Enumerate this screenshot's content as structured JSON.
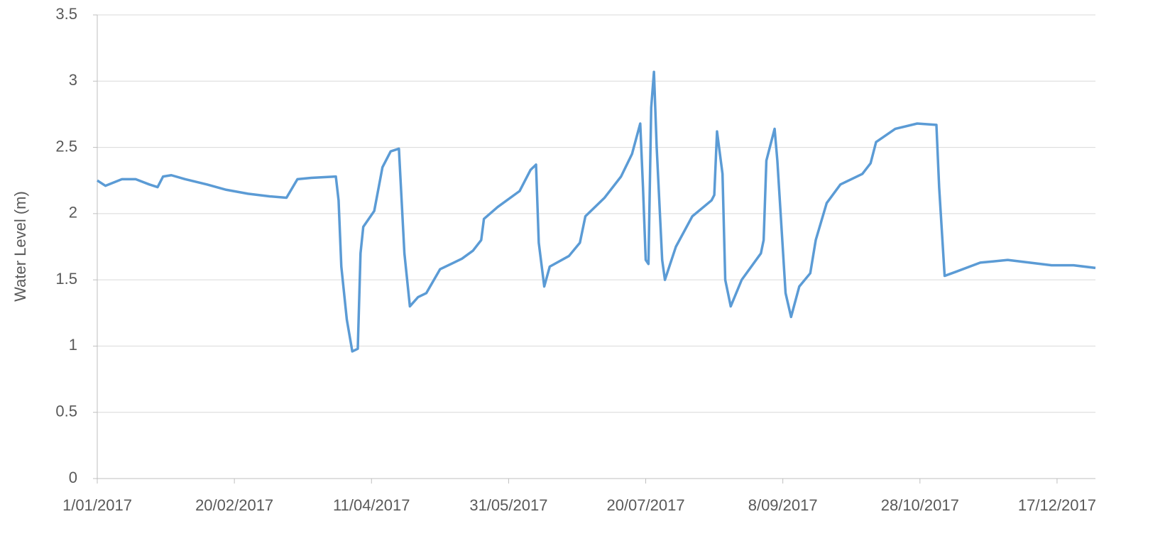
{
  "chart_data": {
    "type": "line",
    "y_label": "Water Level (m)",
    "x": [
      "2017-01-01",
      "2017-01-04",
      "2017-01-10",
      "2017-01-15",
      "2017-01-20",
      "2017-01-23",
      "2017-01-25",
      "2017-01-28",
      "2017-02-02",
      "2017-02-10",
      "2017-02-17",
      "2017-02-25",
      "2017-03-05",
      "2017-03-11",
      "2017-03-15",
      "2017-03-20",
      "2017-03-29",
      "2017-03-30",
      "2017-03-31",
      "2017-04-02",
      "2017-04-04",
      "2017-04-06",
      "2017-04-07",
      "2017-04-08",
      "2017-04-12",
      "2017-04-15",
      "2017-04-18",
      "2017-04-21",
      "2017-04-23",
      "2017-04-25",
      "2017-04-28",
      "2017-05-01",
      "2017-05-06",
      "2017-05-14",
      "2017-05-18",
      "2017-05-21",
      "2017-05-22",
      "2017-05-27",
      "2017-06-04",
      "2017-06-08",
      "2017-06-10",
      "2017-06-11",
      "2017-06-13",
      "2017-06-15",
      "2017-06-22",
      "2017-06-26",
      "2017-06-28",
      "2017-07-05",
      "2017-07-11",
      "2017-07-15",
      "2017-07-18",
      "2017-07-19",
      "2017-07-20",
      "2017-07-21",
      "2017-07-22",
      "2017-07-23",
      "2017-07-24",
      "2017-07-26",
      "2017-07-27",
      "2017-07-31",
      "2017-08-06",
      "2017-08-13",
      "2017-08-14",
      "2017-08-15",
      "2017-08-17",
      "2017-08-18",
      "2017-08-20",
      "2017-08-24",
      "2017-08-31",
      "2017-09-01",
      "2017-09-02",
      "2017-09-05",
      "2017-09-06",
      "2017-09-09",
      "2017-09-11",
      "2017-09-14",
      "2017-09-18",
      "2017-09-20",
      "2017-09-24",
      "2017-09-29",
      "2017-10-07",
      "2017-10-10",
      "2017-10-12",
      "2017-10-19",
      "2017-10-27",
      "2017-11-03",
      "2017-11-04",
      "2017-11-06",
      "2017-11-10",
      "2017-11-19",
      "2017-11-29",
      "2017-12-07",
      "2017-12-15",
      "2017-12-23",
      "2017-12-31"
    ],
    "series": [
      {
        "color": "#5b9bd5",
        "values": [
          2.25,
          2.21,
          2.26,
          2.26,
          2.22,
          2.2,
          2.28,
          2.29,
          2.26,
          2.22,
          2.18,
          2.15,
          2.13,
          2.12,
          2.26,
          2.27,
          2.28,
          2.1,
          1.6,
          1.2,
          0.96,
          0.98,
          1.7,
          1.9,
          2.02,
          2.35,
          2.47,
          2.49,
          1.7,
          1.3,
          1.37,
          1.4,
          1.58,
          1.66,
          1.72,
          1.8,
          1.96,
          2.05,
          2.17,
          2.33,
          2.37,
          1.78,
          1.45,
          1.6,
          1.68,
          1.78,
          1.98,
          2.12,
          2.28,
          2.45,
          2.68,
          2.2,
          1.65,
          1.62,
          2.8,
          3.07,
          2.5,
          1.65,
          1.5,
          1.75,
          1.98,
          2.1,
          2.14,
          2.62,
          2.3,
          1.5,
          1.3,
          1.5,
          1.7,
          1.8,
          2.4,
          2.64,
          2.4,
          1.4,
          1.22,
          1.45,
          1.55,
          1.8,
          2.08,
          2.22,
          2.3,
          2.38,
          2.54,
          2.64,
          2.68,
          2.67,
          2.2,
          1.53,
          1.56,
          1.63,
          1.65,
          1.63,
          1.61,
          1.61,
          1.59
        ]
      }
    ],
    "xlim": [
      "2017-01-01",
      "2017-12-31"
    ],
    "xticks": [
      {
        "value": "2017-01-01",
        "label": "1/01/2017"
      },
      {
        "value": "2017-02-20",
        "label": "20/02/2017"
      },
      {
        "value": "2017-04-11",
        "label": "11/04/2017"
      },
      {
        "value": "2017-05-31",
        "label": "31/05/2017"
      },
      {
        "value": "2017-07-20",
        "label": "20/07/2017"
      },
      {
        "value": "2017-09-08",
        "label": "8/09/2017"
      },
      {
        "value": "2017-10-28",
        "label": "28/10/2017"
      },
      {
        "value": "2017-12-17",
        "label": "17/12/2017"
      }
    ],
    "ylim": [
      0,
      3.5
    ],
    "yticks": [
      0,
      0.5,
      1,
      1.5,
      2,
      2.5,
      3,
      3.5
    ],
    "grid": true
  }
}
